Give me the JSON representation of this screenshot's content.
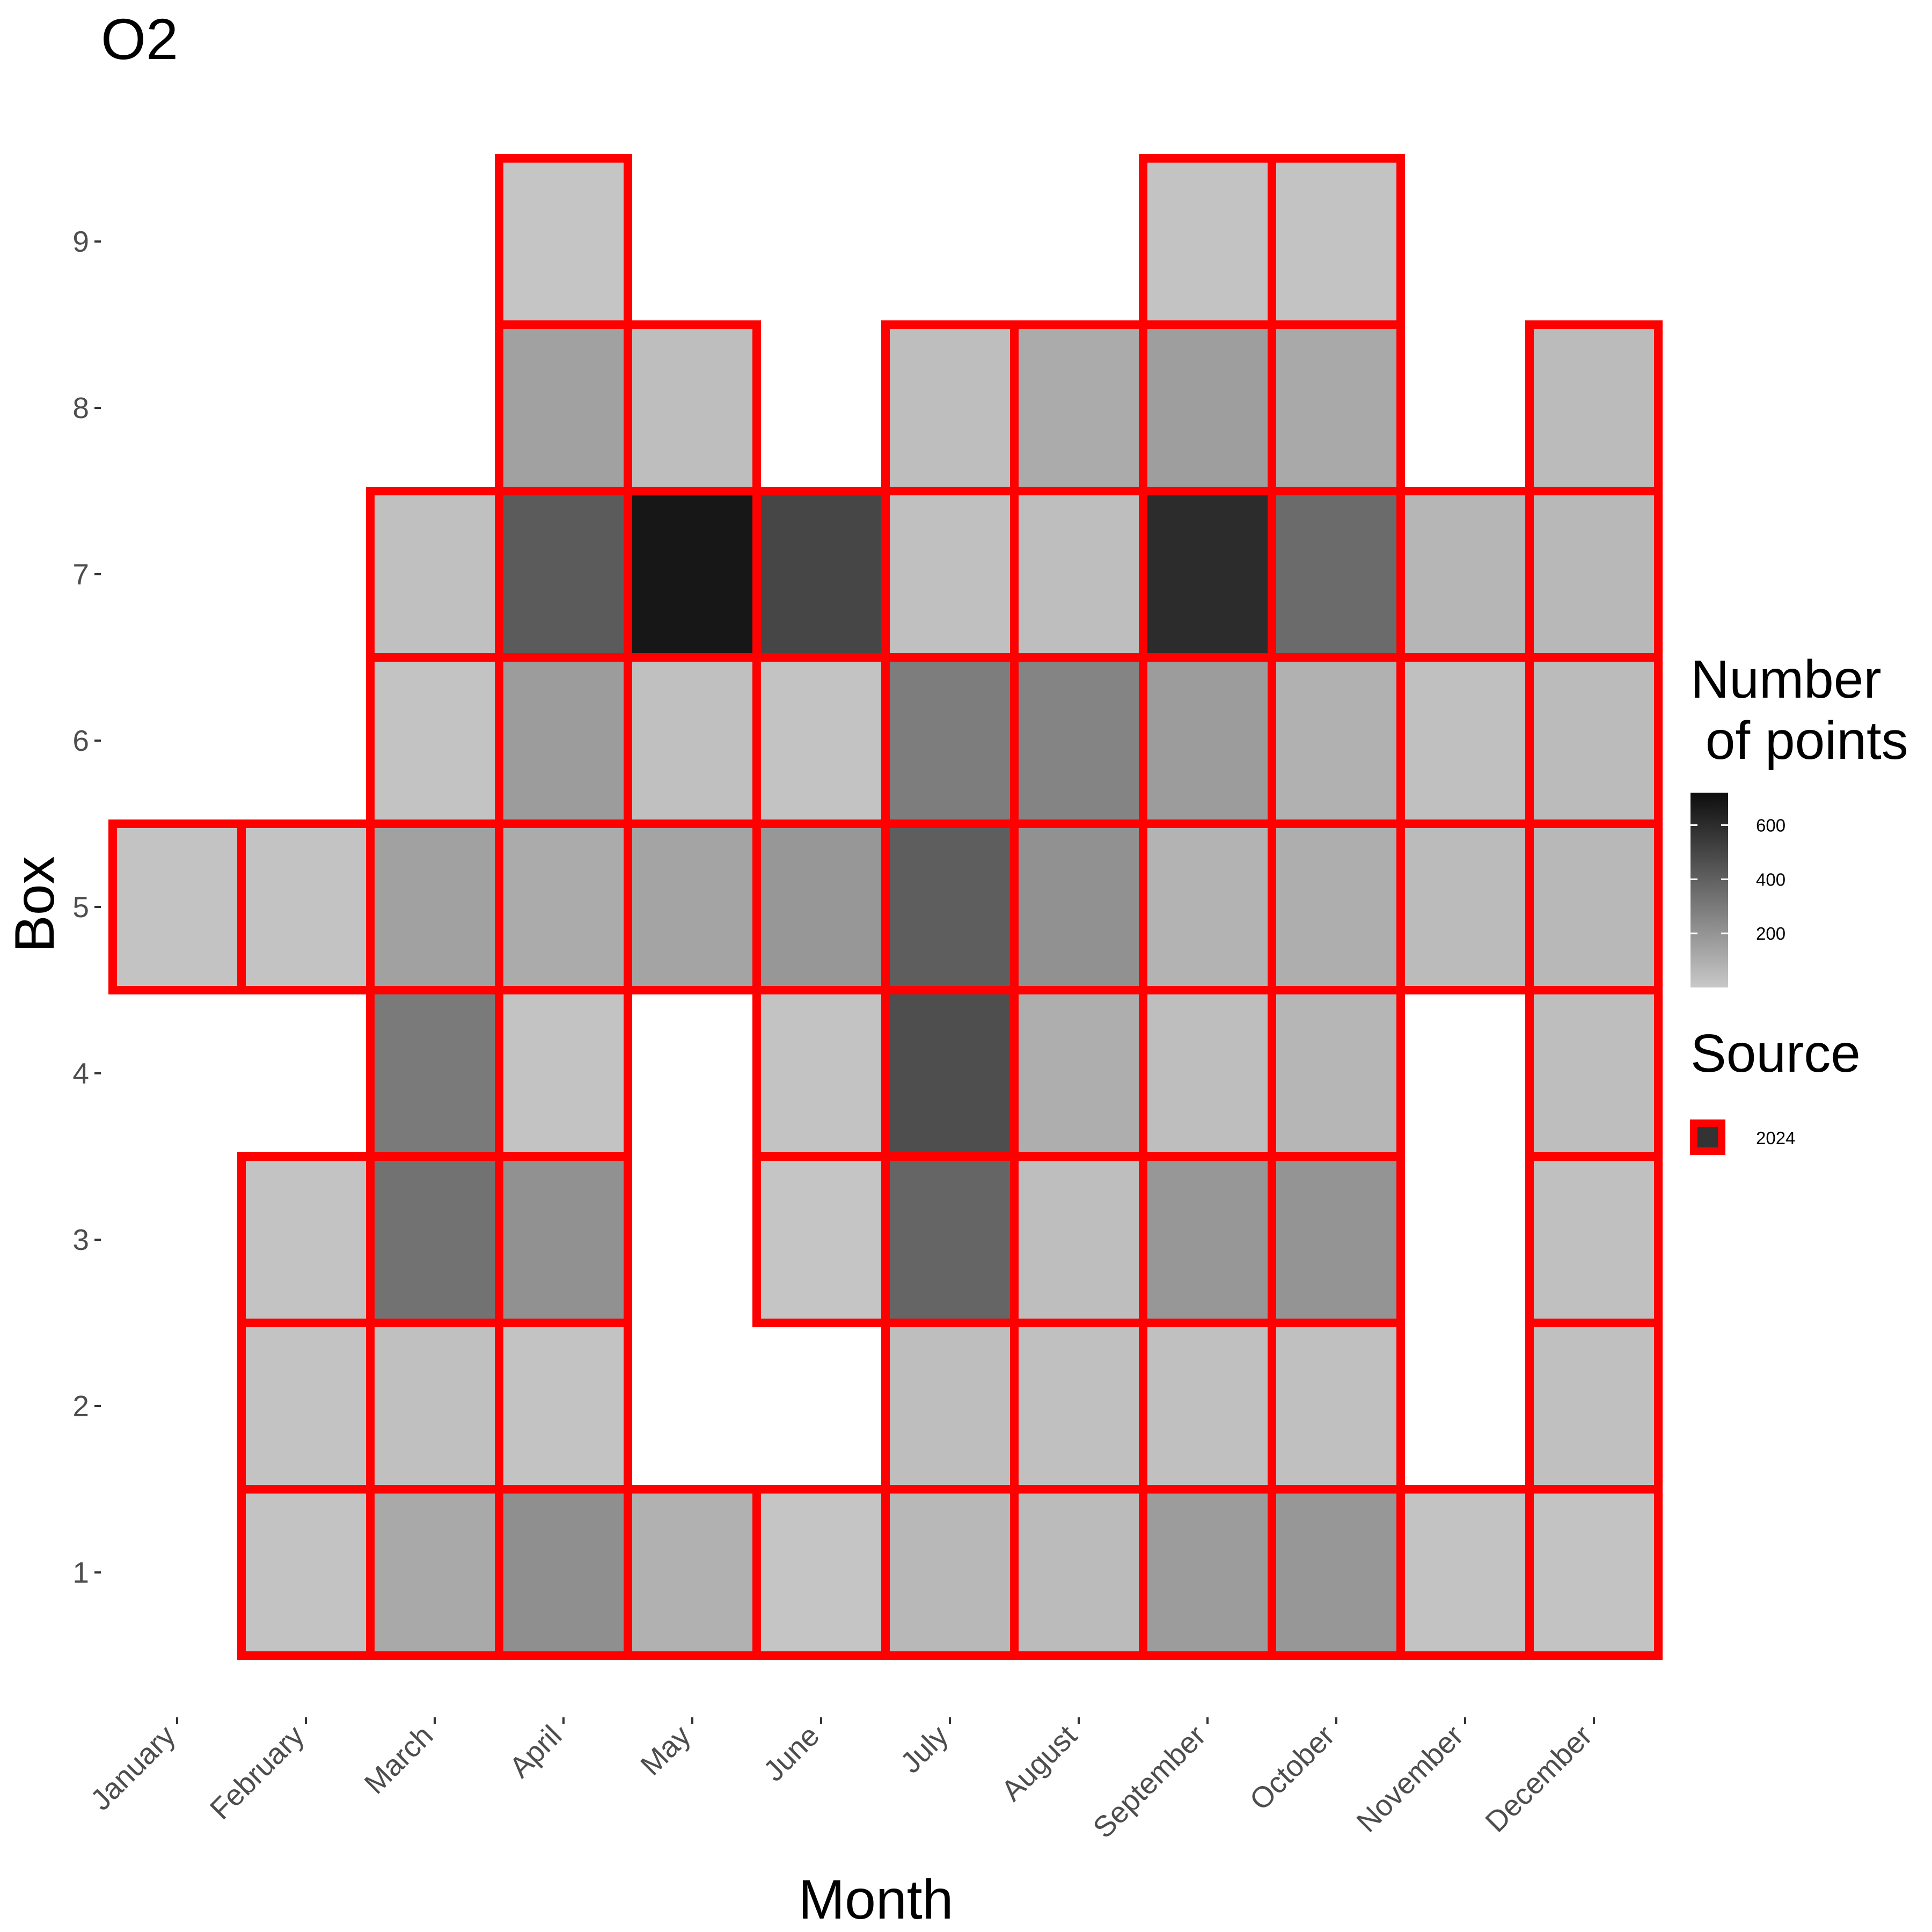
{
  "chart_data": {
    "type": "heatmap",
    "title": "O2",
    "xlabel": "Month",
    "ylabel": "Box",
    "x_categories": [
      "January",
      "February",
      "March",
      "April",
      "May",
      "June",
      "July",
      "August",
      "September",
      "October",
      "November",
      "December"
    ],
    "y_categories": [
      "1",
      "2",
      "3",
      "4",
      "5",
      "6",
      "7",
      "8",
      "9"
    ],
    "colorbar": {
      "title": "Number\n of points",
      "ticks": [
        "200",
        "400",
        "600"
      ],
      "tick_values": [
        200,
        400,
        600
      ],
      "range": [
        0,
        720
      ],
      "low_color": "#c8c8c8",
      "high_color": "#0d0d0d"
    },
    "source_legend": {
      "title": "Source",
      "entries": [
        {
          "label": "2024",
          "border_color": "#ff0000",
          "fill_color": "#333333"
        }
      ]
    },
    "tile_border_color": "#ff0000",
    "grid": false,
    "legend_position": "right",
    "cells": [
      {
        "month": "January",
        "box": 5,
        "count": 20
      },
      {
        "month": "February",
        "box": 1,
        "count": 20
      },
      {
        "month": "February",
        "box": 2,
        "count": 20
      },
      {
        "month": "February",
        "box": 3,
        "count": 20
      },
      {
        "month": "February",
        "box": 5,
        "count": 20
      },
      {
        "month": "March",
        "box": 1,
        "count": 120
      },
      {
        "month": "March",
        "box": 2,
        "count": 30
      },
      {
        "month": "March",
        "box": 3,
        "count": 330
      },
      {
        "month": "March",
        "box": 4,
        "count": 300
      },
      {
        "month": "March",
        "box": 5,
        "count": 150
      },
      {
        "month": "March",
        "box": 6,
        "count": 20
      },
      {
        "month": "March",
        "box": 7,
        "count": 30
      },
      {
        "month": "April",
        "box": 1,
        "count": 220
      },
      {
        "month": "April",
        "box": 2,
        "count": 20
      },
      {
        "month": "April",
        "box": 3,
        "count": 210
      },
      {
        "month": "April",
        "box": 4,
        "count": 20
      },
      {
        "month": "April",
        "box": 5,
        "count": 110
      },
      {
        "month": "April",
        "box": 6,
        "count": 170
      },
      {
        "month": "April",
        "box": 7,
        "count": 420
      },
      {
        "month": "April",
        "box": 8,
        "count": 150
      },
      {
        "month": "April",
        "box": 9,
        "count": 10
      },
      {
        "month": "May",
        "box": 1,
        "count": 90
      },
      {
        "month": "May",
        "box": 5,
        "count": 140
      },
      {
        "month": "May",
        "box": 6,
        "count": 30
      },
      {
        "month": "May",
        "box": 7,
        "count": 680
      },
      {
        "month": "May",
        "box": 8,
        "count": 40
      },
      {
        "month": "June",
        "box": 1,
        "count": 10
      },
      {
        "month": "June",
        "box": 3,
        "count": 10
      },
      {
        "month": "June",
        "box": 4,
        "count": 20
      },
      {
        "month": "June",
        "box": 5,
        "count": 190
      },
      {
        "month": "June",
        "box": 6,
        "count": 20
      },
      {
        "month": "June",
        "box": 7,
        "count": 500
      },
      {
        "month": "July",
        "box": 1,
        "count": 60
      },
      {
        "month": "July",
        "box": 2,
        "count": 40
      },
      {
        "month": "July",
        "box": 3,
        "count": 380
      },
      {
        "month": "July",
        "box": 4,
        "count": 470
      },
      {
        "month": "July",
        "box": 5,
        "count": 410
      },
      {
        "month": "July",
        "box": 6,
        "count": 290
      },
      {
        "month": "July",
        "box": 7,
        "count": 30
      },
      {
        "month": "July",
        "box": 8,
        "count": 40
      },
      {
        "month": "August",
        "box": 1,
        "count": 50
      },
      {
        "month": "August",
        "box": 2,
        "count": 30
      },
      {
        "month": "August",
        "box": 3,
        "count": 40
      },
      {
        "month": "August",
        "box": 4,
        "count": 100
      },
      {
        "month": "August",
        "box": 5,
        "count": 210
      },
      {
        "month": "August",
        "box": 6,
        "count": 260
      },
      {
        "month": "August",
        "box": 7,
        "count": 40
      },
      {
        "month": "August",
        "box": 8,
        "count": 110
      },
      {
        "month": "September",
        "box": 1,
        "count": 170
      },
      {
        "month": "September",
        "box": 2,
        "count": 30
      },
      {
        "month": "September",
        "box": 3,
        "count": 190
      },
      {
        "month": "September",
        "box": 4,
        "count": 40
      },
      {
        "month": "September",
        "box": 5,
        "count": 80
      },
      {
        "month": "September",
        "box": 6,
        "count": 170
      },
      {
        "month": "September",
        "box": 7,
        "count": 600
      },
      {
        "month": "September",
        "box": 8,
        "count": 160
      },
      {
        "month": "September",
        "box": 9,
        "count": 20
      },
      {
        "month": "October",
        "box": 1,
        "count": 190
      },
      {
        "month": "October",
        "box": 2,
        "count": 30
      },
      {
        "month": "October",
        "box": 3,
        "count": 200
      },
      {
        "month": "October",
        "box": 4,
        "count": 70
      },
      {
        "month": "October",
        "box": 5,
        "count": 100
      },
      {
        "month": "October",
        "box": 6,
        "count": 90
      },
      {
        "month": "October",
        "box": 7,
        "count": 360
      },
      {
        "month": "October",
        "box": 8,
        "count": 120
      },
      {
        "month": "October",
        "box": 9,
        "count": 20
      },
      {
        "month": "November",
        "box": 1,
        "count": 20
      },
      {
        "month": "November",
        "box": 5,
        "count": 50
      },
      {
        "month": "November",
        "box": 6,
        "count": 30
      },
      {
        "month": "November",
        "box": 7,
        "count": 70
      },
      {
        "month": "December",
        "box": 1,
        "count": 20
      },
      {
        "month": "December",
        "box": 2,
        "count": 30
      },
      {
        "month": "December",
        "box": 3,
        "count": 30
      },
      {
        "month": "December",
        "box": 4,
        "count": 40
      },
      {
        "month": "December",
        "box": 5,
        "count": 60
      },
      {
        "month": "December",
        "box": 6,
        "count": 50
      },
      {
        "month": "December",
        "box": 7,
        "count": 60
      },
      {
        "month": "December",
        "box": 8,
        "count": 50
      }
    ]
  }
}
